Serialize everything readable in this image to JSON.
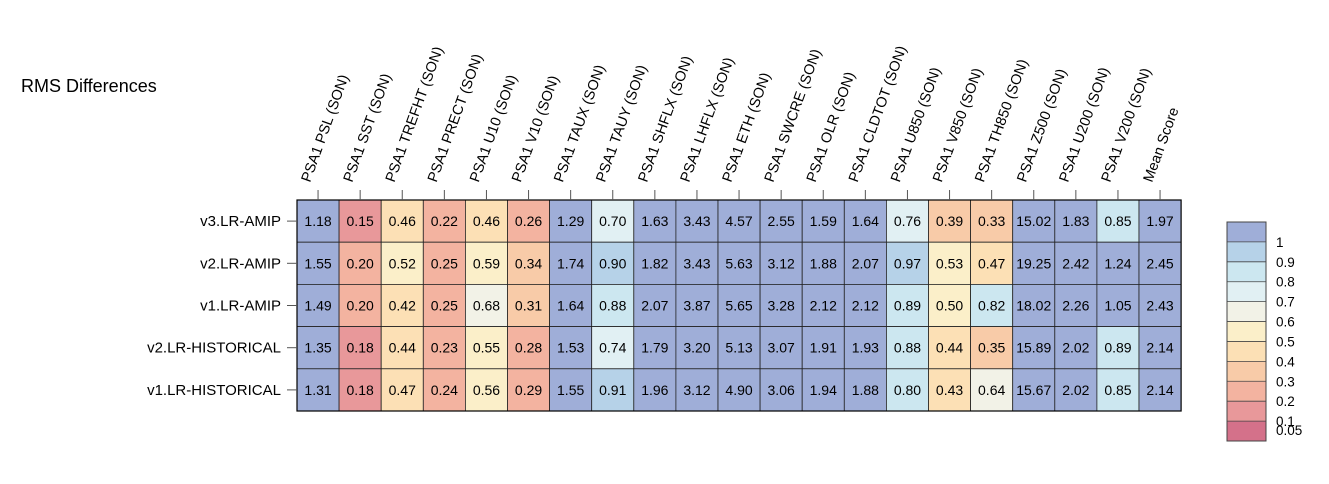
{
  "chart_data": {
    "type": "heatmap",
    "title": "RMS Differences",
    "columns": [
      "PSA1 PSL (SON)",
      "PSA1 SST (SON)",
      "PSA1 TREFHT (SON)",
      "PSA1 PRECT (SON)",
      "PSA1 U10 (SON)",
      "PSA1 V10 (SON)",
      "PSA1 TAUX (SON)",
      "PSA1 TAUY (SON)",
      "PSA1 SHFLX (SON)",
      "PSA1 LHFLX (SON)",
      "PSA1 ETH (SON)",
      "PSA1 SWCRE (SON)",
      "PSA1 OLR (SON)",
      "PSA1 CLDTOT (SON)",
      "PSA1 U850 (SON)",
      "PSA1 V850 (SON)",
      "PSA1 TH850 (SON)",
      "PSA1 Z500 (SON)",
      "PSA1 U200 (SON)",
      "PSA1 V200 (SON)",
      "Mean Score"
    ],
    "rows": [
      "v3.LR-AMIP",
      "v2.LR-AMIP",
      "v1.LR-AMIP",
      "v2.LR-HISTORICAL",
      "v1.LR-HISTORICAL"
    ],
    "values": [
      [
        1.18,
        0.15,
        0.46,
        0.22,
        0.46,
        0.26,
        1.29,
        0.7,
        1.63,
        3.43,
        4.57,
        2.55,
        1.59,
        1.64,
        0.76,
        0.39,
        0.33,
        15.02,
        1.83,
        0.85,
        1.97
      ],
      [
        1.55,
        0.2,
        0.52,
        0.25,
        0.59,
        0.34,
        1.74,
        0.9,
        1.82,
        3.43,
        5.63,
        3.12,
        1.88,
        2.07,
        0.97,
        0.53,
        0.47,
        19.25,
        2.42,
        1.24,
        2.45
      ],
      [
        1.49,
        0.2,
        0.42,
        0.25,
        0.68,
        0.31,
        1.64,
        0.88,
        2.07,
        3.87,
        5.65,
        3.28,
        2.12,
        2.12,
        0.89,
        0.5,
        0.82,
        18.02,
        2.26,
        1.05,
        2.43
      ],
      [
        1.35,
        0.18,
        0.44,
        0.23,
        0.55,
        0.28,
        1.53,
        0.74,
        1.79,
        3.2,
        5.13,
        3.07,
        1.91,
        1.93,
        0.88,
        0.44,
        0.35,
        15.89,
        2.02,
        0.89,
        2.14
      ],
      [
        1.31,
        0.18,
        0.47,
        0.24,
        0.56,
        0.29,
        1.55,
        0.91,
        1.96,
        3.12,
        4.9,
        3.06,
        1.94,
        1.88,
        0.8,
        0.43,
        0.64,
        15.67,
        2.02,
        0.85,
        2.14
      ]
    ],
    "value_labels": [
      [
        "1.18",
        "0.15",
        "0.46",
        "0.22",
        "0.46",
        "0.26",
        "1.29",
        "0.70",
        "1.63",
        "3.43",
        "4.57",
        "2.55",
        "1.59",
        "1.64",
        "0.76",
        "0.39",
        "0.33",
        "15.02",
        "1.83",
        "0.85",
        "1.97"
      ],
      [
        "1.55",
        "0.20",
        "0.52",
        "0.25",
        "0.59",
        "0.34",
        "1.74",
        "0.90",
        "1.82",
        "3.43",
        "5.63",
        "3.12",
        "1.88",
        "2.07",
        "0.97",
        "0.53",
        "0.47",
        "19.25",
        "2.42",
        "1.24",
        "2.45"
      ],
      [
        "1.49",
        "0.20",
        "0.42",
        "0.25",
        "0.68",
        "0.31",
        "1.64",
        "0.88",
        "2.07",
        "3.87",
        "5.65",
        "3.28",
        "2.12",
        "2.12",
        "0.89",
        "0.50",
        "0.82",
        "18.02",
        "2.26",
        "1.05",
        "2.43"
      ],
      [
        "1.35",
        "0.18",
        "0.44",
        "0.23",
        "0.55",
        "0.28",
        "1.53",
        "0.74",
        "1.79",
        "3.20",
        "5.13",
        "3.07",
        "1.91",
        "1.93",
        "0.88",
        "0.44",
        "0.35",
        "15.89",
        "2.02",
        "0.89",
        "2.14"
      ],
      [
        "1.31",
        "0.18",
        "0.47",
        "0.24",
        "0.56",
        "0.29",
        "1.55",
        "0.91",
        "1.96",
        "3.12",
        "4.90",
        "3.06",
        "1.94",
        "1.88",
        "0.80",
        "0.43",
        "0.64",
        "15.67",
        "2.02",
        "0.85",
        "2.14"
      ]
    ],
    "colorbar": {
      "bounds": [
        0.05,
        0.1,
        0.2,
        0.3,
        0.4,
        0.5,
        0.6,
        0.7,
        0.8,
        0.9,
        1
      ],
      "tick_labels": [
        "0.05",
        "0.1",
        "0.2",
        "0.3",
        "0.4",
        "0.5",
        "0.6",
        "0.7",
        "0.8",
        "0.9",
        "1"
      ],
      "colors": [
        "#d4718a",
        "#e8989a",
        "#f3b3a0",
        "#f8cba8",
        "#fce0b5",
        "#fbefc9",
        "#f2f2e7",
        "#e1f0f3",
        "#cce7f0",
        "#b6d2e8",
        "#9faed8"
      ],
      "over_color": "#9faed8"
    },
    "legend_position": "right"
  }
}
